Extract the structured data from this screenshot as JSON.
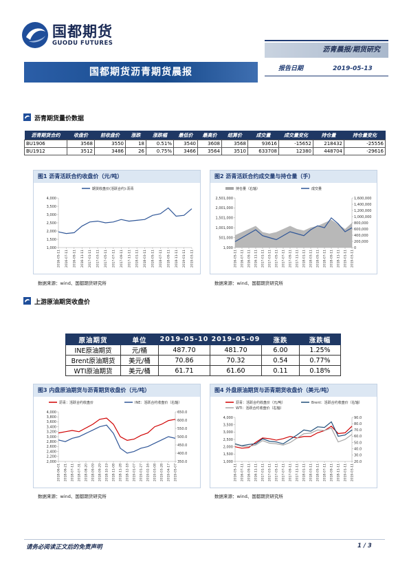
{
  "header": {
    "company_cn": "国都期货",
    "company_en": "GUODU FUTURES",
    "tag": "沥青晨报/期货研究",
    "title": "国都期货沥青期货晨报",
    "date_label": "报告日期",
    "date": "2019-05-13"
  },
  "sections": [
    {
      "title": "沥青期货量价数据"
    },
    {
      "title": "上游原油期货收盘价"
    }
  ],
  "table1": {
    "columns": [
      "沥青期货合约",
      "收盘价",
      "前收盘价",
      "涨跌",
      "涨跌幅",
      "最低价",
      "最高价",
      "结算价",
      "成交量",
      "成交量变化",
      "持仓量",
      "持仓量变化"
    ],
    "rows": [
      [
        "BU1906",
        "3568",
        "3550",
        "18",
        "0.51%",
        "3540",
        "3608",
        "3568",
        "93616",
        "-15652",
        "218432",
        "-25556"
      ],
      [
        "BU1912",
        "3512",
        "3486",
        "26",
        "0.75%",
        "3466",
        "3564",
        "3510",
        "633708",
        "12380",
        "448704",
        "-29616"
      ]
    ]
  },
  "table2": {
    "columns": [
      "原油期货",
      "单位",
      "2019-05-10",
      "2019-05-09",
      "涨跌",
      "涨跌幅"
    ],
    "rows": [
      [
        "INE原油期货",
        "元/桶",
        "487.70",
        "481.70",
        "6.00",
        "1.25%"
      ],
      [
        "Brent原油期货",
        "美元/桶",
        "70.86",
        "70.32",
        "0.54",
        "0.77%"
      ],
      [
        "WTI原油期货",
        "美元/桶",
        "61.71",
        "61.60",
        "0.11",
        "0.18%"
      ]
    ]
  },
  "chart_data": [
    {
      "type": "line",
      "title": "图1 沥青活跃合约收盘价（元/吨）",
      "source": "数据来源：wind、国都期货研究所",
      "categories": [
        "2016-05-11",
        "2016-07-11",
        "2016-09-11",
        "2016-11-11",
        "2017-01-11",
        "2017-03-11",
        "2017-05-11",
        "2017-07-11",
        "2017-09-11",
        "2017-11-11",
        "2018-01-11",
        "2018-03-11",
        "2018-05-11",
        "2018-07-11",
        "2018-09-11",
        "2018-11-11",
        "2019-01-11",
        "2019-03-11"
      ],
      "ylim": [
        1000,
        4000
      ],
      "yticks": [
        {
          "value": 1000,
          "label": "1,000"
        },
        {
          "value": 1500,
          "label": "1,500"
        },
        {
          "value": 2000,
          "label": "2,000"
        },
        {
          "value": 2500,
          "label": "2,500"
        },
        {
          "value": 3000,
          "label": "3,000"
        },
        {
          "value": 3500,
          "label": "3,500"
        },
        {
          "value": 4000,
          "label": "4,000"
        }
      ],
      "series": [
        {
          "name": "期货收盘价(活跃合约):沥青",
          "color": "#2e5597",
          "values": [
            1950,
            1850,
            1900,
            2300,
            2550,
            2600,
            2500,
            2550,
            2700,
            2600,
            2650,
            2700,
            2950,
            3050,
            3400,
            2900,
            2950,
            3350
          ]
        }
      ]
    },
    {
      "type": "line",
      "title": "图2 沥青活跃合约成交量与持仓量（手）",
      "source": "数据来源：wind、国都期货研究所",
      "categories": [
        "2016-05-11",
        "2016-07-11",
        "2016-09-11",
        "2016-11-11",
        "2017-01-11",
        "2017-03-11",
        "2017-05-11",
        "2017-07-11",
        "2017-09-11",
        "2017-11-11",
        "2018-01-11",
        "2018-03-11",
        "2018-05-11",
        "2018-07-11",
        "2018-09-11",
        "2018-11-11",
        "2019-01-11",
        "2019-03-11"
      ],
      "ylim": [
        1000,
        2501000
      ],
      "yticks": [
        {
          "value": 1000,
          "label": "1,000"
        },
        {
          "value": 501000,
          "label": "501,000"
        },
        {
          "value": 1001000,
          "label": "1,001,000"
        },
        {
          "value": 1501000,
          "label": "1,501,000"
        },
        {
          "value": 2001000,
          "label": "2,001,000"
        },
        {
          "value": 2501000,
          "label": "2,501,000"
        }
      ],
      "y2lim": [
        0,
        1600000
      ],
      "y2ticks": [
        0,
        {
          "value": 200000,
          "label": "200,000"
        },
        {
          "value": 400000,
          "label": "400,000"
        },
        {
          "value": 600000,
          "label": "600,000"
        },
        {
          "value": 800000,
          "label": "800,000"
        },
        {
          "value": 1000000,
          "label": "1,000,000"
        },
        {
          "value": 1200000,
          "label": "1,200,000"
        },
        {
          "value": 1400000,
          "label": "1,400,000"
        },
        {
          "value": 1600000,
          "label": "1,600,000"
        }
      ],
      "series": [
        {
          "name": "持仓量（右轴）",
          "color": "#a6a6a6",
          "kind": "area",
          "axis": "y2",
          "values": [
            400000,
            500000,
            600000,
            700000,
            500000,
            450000,
            500000,
            600000,
            700000,
            600000,
            550000,
            650000,
            700000,
            800000,
            900000,
            750000,
            600000,
            800000
          ]
        },
        {
          "name": "成交量",
          "color": "#2e5597",
          "values": [
            300000,
            500000,
            700000,
            900000,
            600000,
            500000,
            400000,
            600000,
            800000,
            700000,
            600000,
            900000,
            1100000,
            1000000,
            1500000,
            1200000,
            800000,
            1000000
          ]
        }
      ]
    },
    {
      "type": "line",
      "title": "图3 内盘原油期货与沥青期货收盘价（元/吨）",
      "source": "数据来源：wind、国都期货研究所",
      "categories": [
        "2018-06-01",
        "2018-06-21",
        "2018-07-11",
        "2018-07-31",
        "2018-08-20",
        "2018-09-09",
        "2018-09-29",
        "2018-10-19",
        "2018-11-08",
        "2018-11-28",
        "2018-12-18",
        "2019-01-07",
        "2019-01-27",
        "2019-02-16",
        "2019-03-08",
        "2019-03-28",
        "2019-04-17",
        "2019-05-07"
      ],
      "ylim": [
        2000,
        4000
      ],
      "yticks": [
        {
          "value": 2000,
          "label": "2,000"
        },
        {
          "value": 2200,
          "label": "2,200"
        },
        {
          "value": 2400,
          "label": "2,400"
        },
        {
          "value": 2600,
          "label": "2,600"
        },
        {
          "value": 2800,
          "label": "2,800"
        },
        {
          "value": 3000,
          "label": "3,000"
        },
        {
          "value": 3200,
          "label": "3,200"
        },
        {
          "value": 3400,
          "label": "3,400"
        },
        {
          "value": 3600,
          "label": "3,600"
        },
        {
          "value": 3800,
          "label": "3,800"
        },
        {
          "value": 4000,
          "label": "4,000"
        }
      ],
      "y2lim": [
        350,
        650
      ],
      "y2ticks": [
        {
          "value": 350,
          "label": "350.0"
        },
        {
          "value": 400,
          "label": "400.0"
        },
        {
          "value": 450,
          "label": "450.0"
        },
        {
          "value": 500,
          "label": "500.0"
        },
        {
          "value": 550,
          "label": "550.0"
        },
        {
          "value": 600,
          "label": "600.0"
        },
        {
          "value": 650,
          "label": "650.0"
        }
      ],
      "series": [
        {
          "name": "沥青：活跃合约收盘价",
          "color": "#d00000",
          "values": [
            3150,
            3200,
            3250,
            3200,
            3350,
            3500,
            3700,
            3750,
            3500,
            3000,
            2850,
            2900,
            3050,
            3150,
            3400,
            3500,
            3650,
            3700
          ]
        },
        {
          "name": "INE：活跃合约收盘价（右轴）",
          "color": "#2e5597",
          "axis": "y2",
          "values": [
            480,
            470,
            490,
            500,
            520,
            540,
            560,
            570,
            520,
            430,
            400,
            410,
            430,
            440,
            460,
            480,
            500,
            490
          ]
        }
      ]
    },
    {
      "type": "line",
      "title": "图4 外盘原油期货与沥青期货收盘价（美元/吨）",
      "source": "数据来源：wind、国都期货研究所",
      "categories": [
        "2016-05-11",
        "2016-07-11",
        "2016-09-11",
        "2016-11-11",
        "2017-01-11",
        "2017-03-11",
        "2017-05-11",
        "2017-07-11",
        "2017-09-11",
        "2017-11-11",
        "2018-01-11",
        "2018-03-11",
        "2018-05-11",
        "2018-07-11",
        "2018-09-11",
        "2018-11-11",
        "2019-01-11",
        "2019-03-11"
      ],
      "ylim": [
        1000,
        4000
      ],
      "yticks": [
        {
          "value": 1000,
          "label": "1,000"
        },
        {
          "value": 1500,
          "label": "1,500"
        },
        {
          "value": 2000,
          "label": "2,000"
        },
        {
          "value": 2500,
          "label": "2,500"
        },
        {
          "value": 3000,
          "label": "3,000"
        },
        {
          "value": 3500,
          "label": "3,500"
        },
        {
          "value": 4000,
          "label": "4,000"
        }
      ],
      "y2lim": [
        20,
        90
      ],
      "y2ticks": [
        {
          "value": 20,
          "label": "20.0"
        },
        {
          "value": 30,
          "label": "30.0"
        },
        {
          "value": 40,
          "label": "40.0"
        },
        {
          "value": 50,
          "label": "50.0"
        },
        {
          "value": 60,
          "label": "60.0"
        },
        {
          "value": 70,
          "label": "70.0"
        },
        {
          "value": 80,
          "label": "80.0"
        },
        {
          "value": 90,
          "label": "90.0"
        }
      ],
      "series": [
        {
          "name": "沥青：活跃合约收盘价（元/吨）",
          "color": "#d00000",
          "values": [
            2000,
            1900,
            1950,
            2300,
            2600,
            2550,
            2450,
            2550,
            2700,
            2600,
            2700,
            2700,
            2950,
            3100,
            3400,
            2900,
            2950,
            3400
          ]
        },
        {
          "name": "Brent：活跃合约收盘价（右轴）",
          "color": "#1f4e79",
          "axis": "y2",
          "values": [
            48,
            45,
            47,
            48,
            56,
            52,
            51,
            48,
            55,
            62,
            70,
            68,
            75,
            74,
            83,
            60,
            62,
            70
          ]
        },
        {
          "name": "WTI：活跃合约收盘价（右轴）",
          "color": "#a6a6a6",
          "axis": "y2",
          "values": [
            47,
            44,
            44,
            46,
            53,
            49,
            48,
            46,
            50,
            57,
            64,
            65,
            70,
            69,
            73,
            51,
            55,
            63
          ]
        }
      ]
    }
  ],
  "footer": {
    "disclaimer": "请务必阅读正文后的免责声明",
    "page": "1 / 3"
  }
}
